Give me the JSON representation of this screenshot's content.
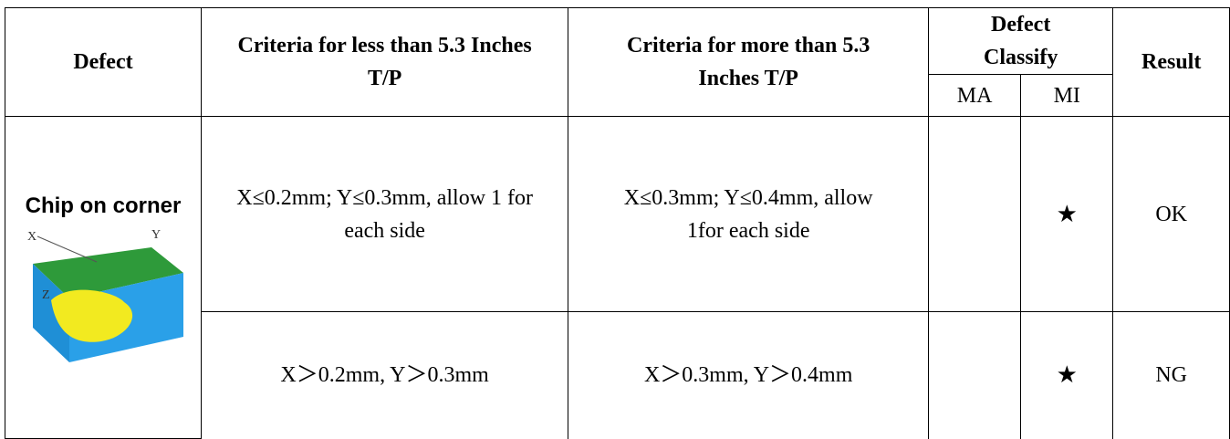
{
  "header": {
    "defect": "Defect",
    "criteria_less": "Criteria for less than 5.3 Inches T/P",
    "criteria_more": "Criteria for more than 5.3 Inches T/P",
    "classify": "Defect Classify",
    "ma": "MA",
    "mi": "MI",
    "result": "Result"
  },
  "defect": "Chip on corner",
  "rows": [
    {
      "criteria_less": "X≤0.2mm; Y≤0.3mm, allow 1 for each side",
      "criteria_more": "X≤0.3mm; Y≤0.4mm, allow 1for each side",
      "mi": "★",
      "result": "OK"
    },
    {
      "criteria_less": "X＞0.2mm, Y＞0.3mm",
      "criteria_more": "X＞0.3mm, Y＞0.4mm",
      "mi": "★",
      "result": "NG"
    }
  ]
}
